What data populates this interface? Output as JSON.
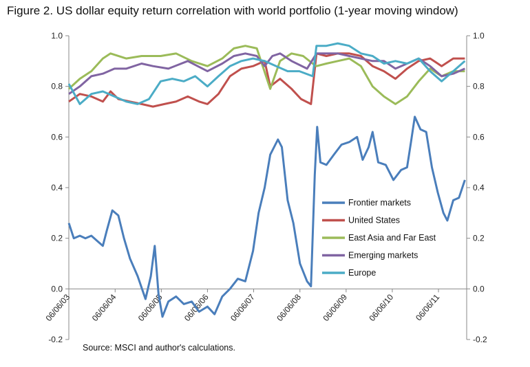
{
  "figure": {
    "title": "Figure 2. US dollar equity return correlation with world portfolio (1-year moving window)",
    "source": "Source: MSCI and author's calculations."
  },
  "chart_data": {
    "type": "line",
    "title": "Figure 2. US dollar equity return correlation with world portfolio (1-year moving window)",
    "xlabel": "",
    "ylabel": "",
    "x_axis": {
      "type": "date",
      "range": [
        "2003-06-06",
        "2012-01-15"
      ],
      "tick_labels": [
        "06/06/03",
        "06/06/04",
        "06/06/05",
        "06/06/06",
        "06/06/07",
        "06/06/08",
        "06/06/09",
        "06/06/10",
        "06/06/11"
      ]
    },
    "y_axis": {
      "range": [
        -0.2,
        1.0
      ],
      "tick_labels": [
        "-0.2",
        "0.0",
        "0.2",
        "0.4",
        "0.6",
        "0.8",
        "1.0"
      ],
      "mirrored_right": true
    },
    "grid": false,
    "legend_placement": "center-right",
    "series": [
      {
        "name": "Frontier markets",
        "color": "#4a7ebb",
        "points": [
          [
            "2003-06-06",
            0.26
          ],
          [
            "2003-07-15",
            0.2
          ],
          [
            "2003-09-01",
            0.21
          ],
          [
            "2003-10-15",
            0.2
          ],
          [
            "2003-12-01",
            0.21
          ],
          [
            "2004-01-15",
            0.19
          ],
          [
            "2004-03-01",
            0.17
          ],
          [
            "2004-04-01",
            0.23
          ],
          [
            "2004-05-15",
            0.31
          ],
          [
            "2004-07-01",
            0.29
          ],
          [
            "2004-08-15",
            0.2
          ],
          [
            "2004-10-01",
            0.12
          ],
          [
            "2004-12-01",
            0.05
          ],
          [
            "2005-02-01",
            -0.04
          ],
          [
            "2005-03-15",
            0.05
          ],
          [
            "2005-04-15",
            0.17
          ],
          [
            "2005-05-15",
            -0.02
          ],
          [
            "2005-06-15",
            -0.11
          ],
          [
            "2005-08-01",
            -0.05
          ],
          [
            "2005-10-01",
            -0.03
          ],
          [
            "2005-12-01",
            -0.06
          ],
          [
            "2006-02-01",
            -0.05
          ],
          [
            "2006-04-01",
            -0.09
          ],
          [
            "2006-06-06",
            -0.07
          ],
          [
            "2006-08-01",
            -0.1
          ],
          [
            "2006-10-01",
            -0.03
          ],
          [
            "2006-12-01",
            0.0
          ],
          [
            "2007-02-01",
            0.04
          ],
          [
            "2007-04-01",
            0.03
          ],
          [
            "2007-06-01",
            0.15
          ],
          [
            "2007-07-15",
            0.3
          ],
          [
            "2007-09-01",
            0.4
          ],
          [
            "2007-10-15",
            0.53
          ],
          [
            "2007-12-15",
            0.59
          ],
          [
            "2008-01-15",
            0.56
          ],
          [
            "2008-03-01",
            0.35
          ],
          [
            "2008-04-15",
            0.26
          ],
          [
            "2008-06-06",
            0.1
          ],
          [
            "2008-08-01",
            0.03
          ],
          [
            "2008-09-01",
            0.01
          ],
          [
            "2008-10-01",
            0.45
          ],
          [
            "2008-10-20",
            0.64
          ],
          [
            "2008-11-15",
            0.5
          ],
          [
            "2009-01-01",
            0.49
          ],
          [
            "2009-03-01",
            0.53
          ],
          [
            "2009-05-01",
            0.57
          ],
          [
            "2009-07-01",
            0.58
          ],
          [
            "2009-09-01",
            0.6
          ],
          [
            "2009-10-15",
            0.51
          ],
          [
            "2009-12-01",
            0.56
          ],
          [
            "2010-01-01",
            0.62
          ],
          [
            "2010-02-15",
            0.5
          ],
          [
            "2010-04-15",
            0.49
          ],
          [
            "2010-06-15",
            0.43
          ],
          [
            "2010-08-15",
            0.47
          ],
          [
            "2010-10-01",
            0.48
          ],
          [
            "2010-11-01",
            0.58
          ],
          [
            "2010-12-01",
            0.68
          ],
          [
            "2011-01-15",
            0.63
          ],
          [
            "2011-03-01",
            0.62
          ],
          [
            "2011-04-15",
            0.48
          ],
          [
            "2011-06-01",
            0.38
          ],
          [
            "2011-07-15",
            0.3
          ],
          [
            "2011-08-15",
            0.27
          ],
          [
            "2011-10-01",
            0.35
          ],
          [
            "2011-11-15",
            0.36
          ],
          [
            "2012-01-01",
            0.43
          ]
        ]
      },
      {
        "name": "United States",
        "color": "#c0504d",
        "points": [
          [
            "2003-06-06",
            0.74
          ],
          [
            "2003-09-01",
            0.77
          ],
          [
            "2003-12-01",
            0.76
          ],
          [
            "2004-03-01",
            0.74
          ],
          [
            "2004-05-01",
            0.78
          ],
          [
            "2004-07-01",
            0.75
          ],
          [
            "2004-10-01",
            0.74
          ],
          [
            "2005-01-01",
            0.73
          ],
          [
            "2005-04-01",
            0.72
          ],
          [
            "2005-07-01",
            0.73
          ],
          [
            "2005-10-01",
            0.74
          ],
          [
            "2006-01-01",
            0.76
          ],
          [
            "2006-04-01",
            0.74
          ],
          [
            "2006-06-06",
            0.73
          ],
          [
            "2006-09-01",
            0.77
          ],
          [
            "2006-12-01",
            0.84
          ],
          [
            "2007-03-01",
            0.87
          ],
          [
            "2007-06-01",
            0.88
          ],
          [
            "2007-09-01",
            0.9
          ],
          [
            "2007-10-15",
            0.8
          ],
          [
            "2008-01-01",
            0.83
          ],
          [
            "2008-04-01",
            0.79
          ],
          [
            "2008-06-15",
            0.75
          ],
          [
            "2008-09-01",
            0.73
          ],
          [
            "2008-10-15",
            0.93
          ],
          [
            "2009-01-01",
            0.92
          ],
          [
            "2009-04-01",
            0.93
          ],
          [
            "2009-07-01",
            0.93
          ],
          [
            "2009-10-01",
            0.92
          ],
          [
            "2010-01-01",
            0.88
          ],
          [
            "2010-04-01",
            0.86
          ],
          [
            "2010-07-01",
            0.83
          ],
          [
            "2010-10-01",
            0.87
          ],
          [
            "2011-01-01",
            0.9
          ],
          [
            "2011-04-01",
            0.91
          ],
          [
            "2011-07-01",
            0.88
          ],
          [
            "2011-10-01",
            0.91
          ],
          [
            "2012-01-01",
            0.91
          ]
        ]
      },
      {
        "name": "East Asia and Far East",
        "color": "#9bbb59",
        "points": [
          [
            "2003-06-06",
            0.79
          ],
          [
            "2003-09-01",
            0.83
          ],
          [
            "2003-12-01",
            0.86
          ],
          [
            "2004-03-01",
            0.91
          ],
          [
            "2004-05-01",
            0.93
          ],
          [
            "2004-09-01",
            0.91
          ],
          [
            "2005-01-01",
            0.92
          ],
          [
            "2005-06-01",
            0.92
          ],
          [
            "2005-10-01",
            0.93
          ],
          [
            "2006-02-01",
            0.9
          ],
          [
            "2006-06-06",
            0.88
          ],
          [
            "2006-10-01",
            0.91
          ],
          [
            "2007-01-01",
            0.95
          ],
          [
            "2007-04-01",
            0.96
          ],
          [
            "2007-07-01",
            0.95
          ],
          [
            "2007-10-15",
            0.79
          ],
          [
            "2008-01-01",
            0.9
          ],
          [
            "2008-04-01",
            0.93
          ],
          [
            "2008-07-01",
            0.92
          ],
          [
            "2008-09-15",
            0.89
          ],
          [
            "2008-10-15",
            0.88
          ],
          [
            "2009-01-01",
            0.89
          ],
          [
            "2009-04-01",
            0.9
          ],
          [
            "2009-07-01",
            0.91
          ],
          [
            "2009-10-01",
            0.88
          ],
          [
            "2010-01-01",
            0.8
          ],
          [
            "2010-04-01",
            0.76
          ],
          [
            "2010-07-01",
            0.73
          ],
          [
            "2010-10-01",
            0.76
          ],
          [
            "2011-01-01",
            0.82
          ],
          [
            "2011-04-01",
            0.87
          ],
          [
            "2011-07-01",
            0.84
          ],
          [
            "2011-10-01",
            0.86
          ],
          [
            "2012-01-01",
            0.86
          ]
        ]
      },
      {
        "name": "Emerging markets",
        "color": "#8064a2",
        "points": [
          [
            "2003-06-06",
            0.77
          ],
          [
            "2003-09-01",
            0.8
          ],
          [
            "2003-12-01",
            0.84
          ],
          [
            "2004-03-01",
            0.85
          ],
          [
            "2004-06-01",
            0.87
          ],
          [
            "2004-09-01",
            0.87
          ],
          [
            "2005-01-01",
            0.89
          ],
          [
            "2005-04-01",
            0.88
          ],
          [
            "2005-08-01",
            0.87
          ],
          [
            "2006-01-01",
            0.9
          ],
          [
            "2006-06-06",
            0.86
          ],
          [
            "2006-10-01",
            0.89
          ],
          [
            "2007-01-01",
            0.92
          ],
          [
            "2007-04-01",
            0.93
          ],
          [
            "2007-07-01",
            0.92
          ],
          [
            "2007-09-01",
            0.88
          ],
          [
            "2007-11-01",
            0.92
          ],
          [
            "2008-01-01",
            0.93
          ],
          [
            "2008-04-01",
            0.9
          ],
          [
            "2008-08-01",
            0.87
          ],
          [
            "2008-10-15",
            0.93
          ],
          [
            "2009-01-01",
            0.93
          ],
          [
            "2009-04-01",
            0.93
          ],
          [
            "2009-07-01",
            0.92
          ],
          [
            "2009-10-01",
            0.91
          ],
          [
            "2010-01-01",
            0.9
          ],
          [
            "2010-04-01",
            0.9
          ],
          [
            "2010-07-01",
            0.87
          ],
          [
            "2010-10-01",
            0.89
          ],
          [
            "2011-01-01",
            0.91
          ],
          [
            "2011-04-01",
            0.88
          ],
          [
            "2011-07-01",
            0.84
          ],
          [
            "2011-10-01",
            0.85
          ],
          [
            "2012-01-01",
            0.87
          ]
        ]
      },
      {
        "name": "Europe",
        "color": "#4bacc6",
        "points": [
          [
            "2003-06-06",
            0.81
          ],
          [
            "2003-09-01",
            0.73
          ],
          [
            "2003-12-01",
            0.77
          ],
          [
            "2004-03-01",
            0.78
          ],
          [
            "2004-06-01",
            0.76
          ],
          [
            "2004-09-01",
            0.74
          ],
          [
            "2004-12-01",
            0.73
          ],
          [
            "2005-03-01",
            0.75
          ],
          [
            "2005-06-01",
            0.82
          ],
          [
            "2005-09-01",
            0.83
          ],
          [
            "2005-12-01",
            0.82
          ],
          [
            "2006-03-01",
            0.84
          ],
          [
            "2006-06-06",
            0.8
          ],
          [
            "2006-09-01",
            0.84
          ],
          [
            "2006-12-01",
            0.88
          ],
          [
            "2007-03-01",
            0.9
          ],
          [
            "2007-06-01",
            0.91
          ],
          [
            "2007-09-01",
            0.9
          ],
          [
            "2007-12-01",
            0.88
          ],
          [
            "2008-03-01",
            0.86
          ],
          [
            "2008-06-01",
            0.86
          ],
          [
            "2008-09-15",
            0.84
          ],
          [
            "2008-10-15",
            0.96
          ],
          [
            "2009-01-01",
            0.96
          ],
          [
            "2009-04-01",
            0.97
          ],
          [
            "2009-07-01",
            0.96
          ],
          [
            "2009-10-01",
            0.93
          ],
          [
            "2010-01-01",
            0.92
          ],
          [
            "2010-04-01",
            0.89
          ],
          [
            "2010-07-01",
            0.9
          ],
          [
            "2010-10-01",
            0.89
          ],
          [
            "2011-01-01",
            0.91
          ],
          [
            "2011-04-01",
            0.86
          ],
          [
            "2011-07-01",
            0.82
          ],
          [
            "2011-10-01",
            0.86
          ],
          [
            "2012-01-01",
            0.9
          ]
        ]
      }
    ]
  }
}
